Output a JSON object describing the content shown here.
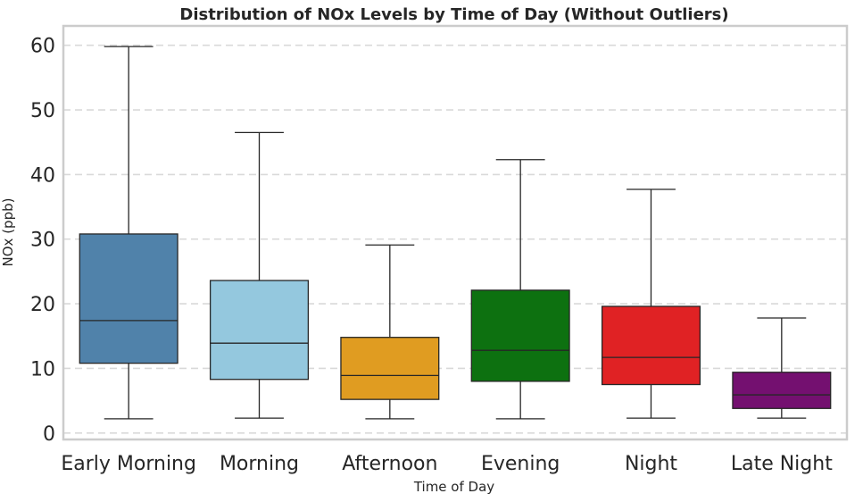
{
  "chart_data": {
    "type": "box",
    "title": "Distribution of NOx Levels by Time of Day (Without Outliers)",
    "xlabel": "Time of Day",
    "ylabel": "NOx (ppb)",
    "ylim": [
      -1,
      63
    ],
    "yticks": [
      0,
      10,
      20,
      30,
      40,
      50,
      60
    ],
    "grid": true,
    "categories": [
      "Early Morning",
      "Morning",
      "Afternoon",
      "Evening",
      "Night",
      "Late Night"
    ],
    "boxes": [
      {
        "whislo": 2.2,
        "q1": 10.8,
        "med": 17.4,
        "q3": 30.8,
        "whishi": 59.8,
        "color": "#5082AA"
      },
      {
        "whislo": 2.3,
        "q1": 8.3,
        "med": 13.9,
        "q3": 23.6,
        "whishi": 46.5,
        "color": "#94C8DE"
      },
      {
        "whislo": 2.2,
        "q1": 5.2,
        "med": 8.9,
        "q3": 14.8,
        "whishi": 29.1,
        "color": "#E09C21"
      },
      {
        "whislo": 2.2,
        "q1": 8.0,
        "med": 12.8,
        "q3": 22.1,
        "whishi": 42.3,
        "color": "#0D7110"
      },
      {
        "whislo": 2.3,
        "q1": 7.5,
        "med": 11.7,
        "q3": 19.6,
        "whishi": 37.7,
        "color": "#E02224"
      },
      {
        "whislo": 2.3,
        "q1": 3.8,
        "med": 5.9,
        "q3": 9.4,
        "whishi": 17.8,
        "color": "#741070"
      }
    ]
  }
}
